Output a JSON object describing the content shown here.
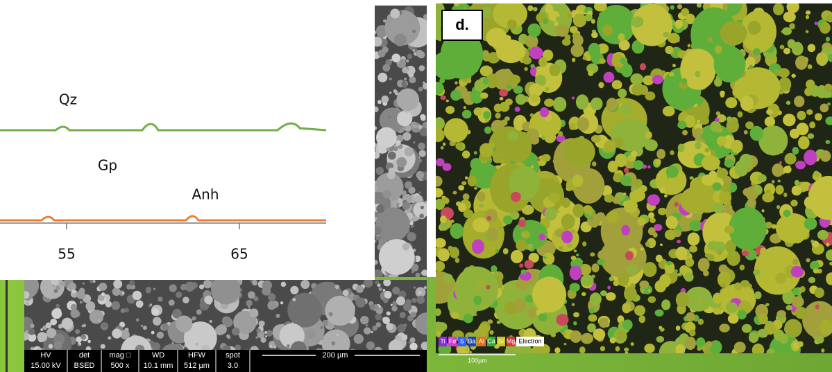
{
  "xrd": {
    "labels": [
      "Qz",
      "Gp",
      "Anh"
    ],
    "xticks": [
      55,
      65
    ]
  },
  "sem": {
    "info": [
      {
        "head": "HV",
        "val": "15.00 kV"
      },
      {
        "head": "det",
        "val": "BSED"
      },
      {
        "head": "mag □",
        "val": "500 x"
      },
      {
        "head": "WD",
        "val": "10.1 mm"
      },
      {
        "head": "HFW",
        "val": "512 µm"
      },
      {
        "head": "spot",
        "val": "3.0"
      }
    ],
    "scale": "200 µm"
  },
  "eds": {
    "panel": "d.",
    "legend": [
      "Ti",
      "Fe",
      "S",
      "Ba",
      "Al",
      "Ca",
      "Si",
      "Mg",
      "Electron"
    ],
    "scale": "100µm"
  }
}
